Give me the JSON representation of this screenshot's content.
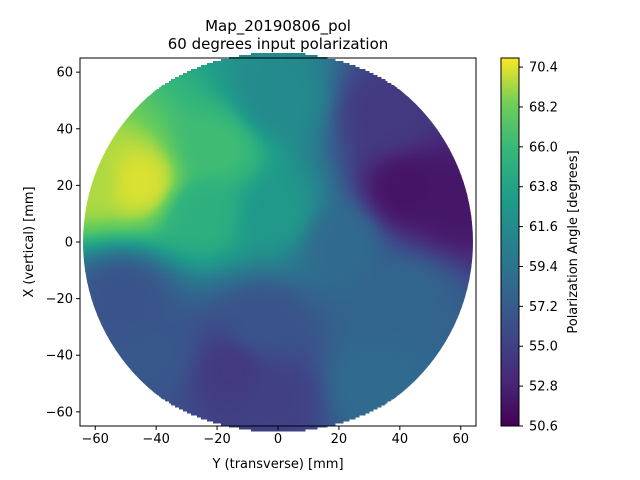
{
  "chart_data": {
    "type": "heatmap",
    "title": "Map_20190806_pol",
    "subtitle": "60 degrees input polarization",
    "xlabel": "Y (transverse) [mm]",
    "ylabel": "X (vertical) [mm]",
    "xlim": [
      -65,
      65
    ],
    "ylim": [
      -65,
      65
    ],
    "xticks": [
      -60,
      -40,
      -20,
      0,
      20,
      40,
      60
    ],
    "yticks": [
      -60,
      -40,
      -20,
      0,
      20,
      40,
      60
    ],
    "colorbar": {
      "label": "Polarization Angle [degrees]",
      "min": 50.6,
      "max": 70.9,
      "ticks": [
        "50.6",
        "52.8",
        "55.0",
        "57.2",
        "59.4",
        "61.6",
        "63.8",
        "66.0",
        "68.2",
        "70.4"
      ],
      "colormap": "viridis"
    },
    "disk": {
      "center": [
        0,
        0
      ],
      "radius": 64
    },
    "features": [
      {
        "y": -45,
        "x": 21,
        "value": 70.3
      },
      {
        "y": -62,
        "x": 22,
        "value": 69.5
      },
      {
        "y": -20,
        "x": 33,
        "value": 66.3
      },
      {
        "y": -25,
        "x": 10,
        "value": 65.0
      },
      {
        "y": 0,
        "x": 10,
        "value": 62.8
      },
      {
        "y": 0,
        "x": 50,
        "value": 61.5
      },
      {
        "y": 42,
        "x": 18,
        "value": 51.8
      },
      {
        "y": 58,
        "x": 14,
        "value": 52.0
      },
      {
        "y": 35,
        "x": 45,
        "value": 54.5
      },
      {
        "y": 20,
        "x": 0,
        "value": 58.5
      },
      {
        "y": 40,
        "x": -20,
        "value": 58.0
      },
      {
        "y": -5,
        "x": -30,
        "value": 56.5
      },
      {
        "y": -15,
        "x": -45,
        "value": 54.5
      },
      {
        "y": 0,
        "x": -55,
        "value": 55.0
      },
      {
        "y": -50,
        "x": -20,
        "value": 56.5
      },
      {
        "y": 30,
        "x": -50,
        "value": 58.5
      },
      {
        "y": -40,
        "x": -40,
        "value": 56.8
      }
    ],
    "baseline": 59.5,
    "grid": false
  }
}
